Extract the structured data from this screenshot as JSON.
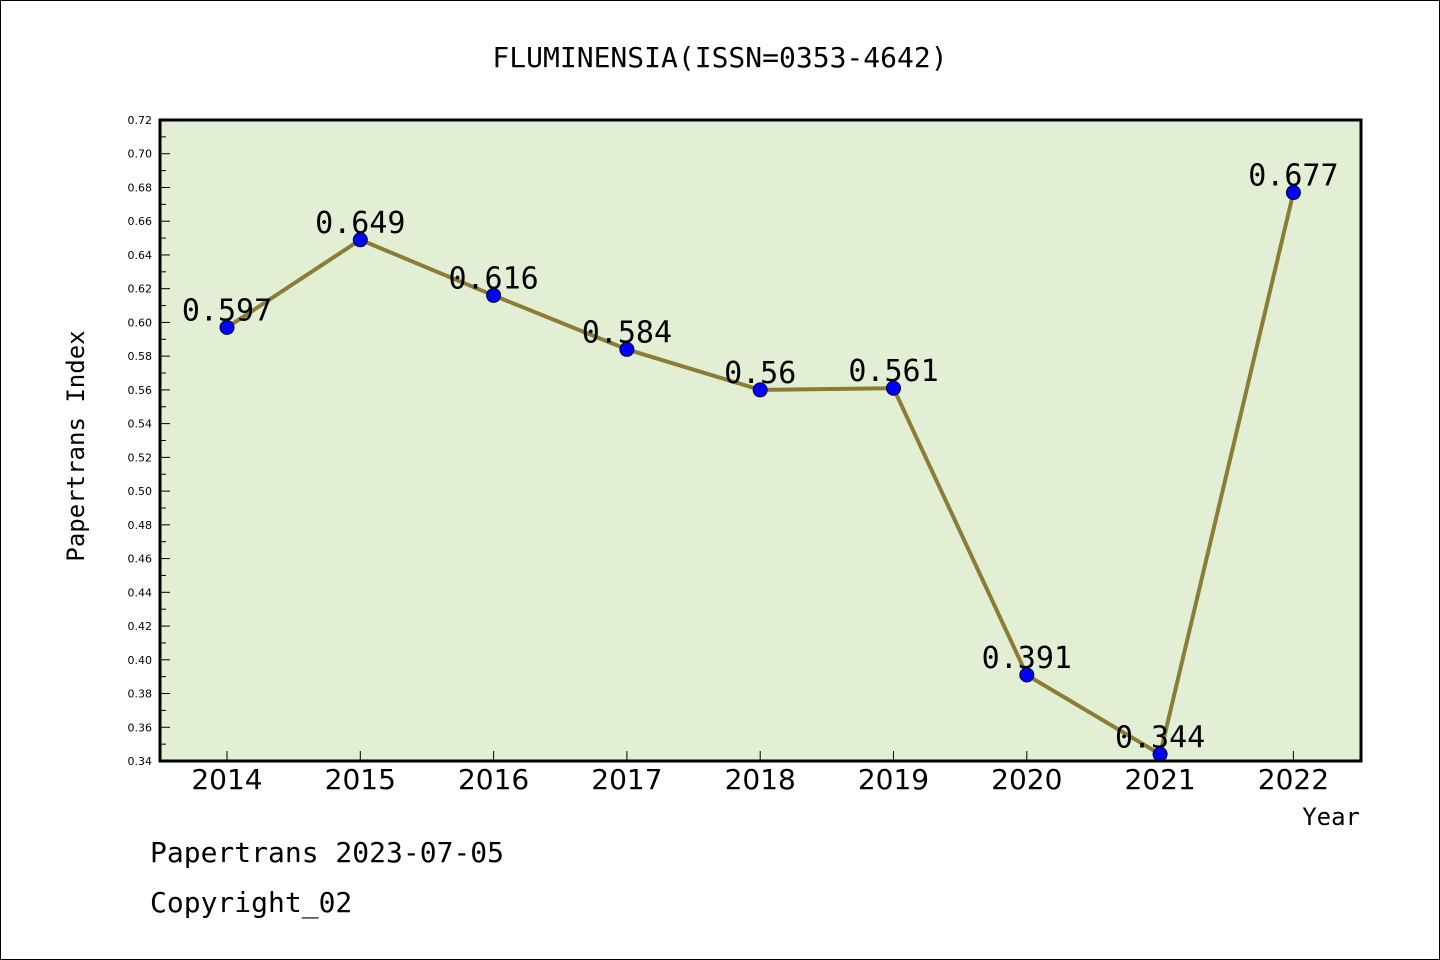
{
  "chart_data": {
    "type": "line",
    "title": "FLUMINENSIA(ISSN=0353-4642)",
    "xlabel": "Year",
    "ylabel": "Papertrans Index",
    "categories": [
      "2014",
      "2015",
      "2016",
      "2017",
      "2018",
      "2019",
      "2020",
      "2021",
      "2022"
    ],
    "values": [
      0.597,
      0.649,
      0.616,
      0.584,
      0.56,
      0.561,
      0.391,
      0.344,
      0.677
    ],
    "data_labels": [
      "0.597",
      "0.649",
      "0.616",
      "0.584",
      "0.56",
      "0.561",
      "0.391",
      "0.344",
      "0.677"
    ],
    "ylim": [
      0.34,
      0.72
    ],
    "yticks": [
      "0.34",
      "0.36",
      "0.38",
      "0.40",
      "0.42",
      "0.44",
      "0.46",
      "0.48",
      "0.50",
      "0.52",
      "0.54",
      "0.56",
      "0.58",
      "0.60",
      "0.62",
      "0.64",
      "0.66",
      "0.68",
      "0.70",
      "0.72"
    ],
    "grid": false,
    "colors": {
      "plot_background": "#e2efd5",
      "line": "#8b7d35",
      "marker": "#0000ff"
    }
  },
  "footer": {
    "source": "Papertrans 2023-07-05",
    "copyright": "Copyright_02"
  }
}
